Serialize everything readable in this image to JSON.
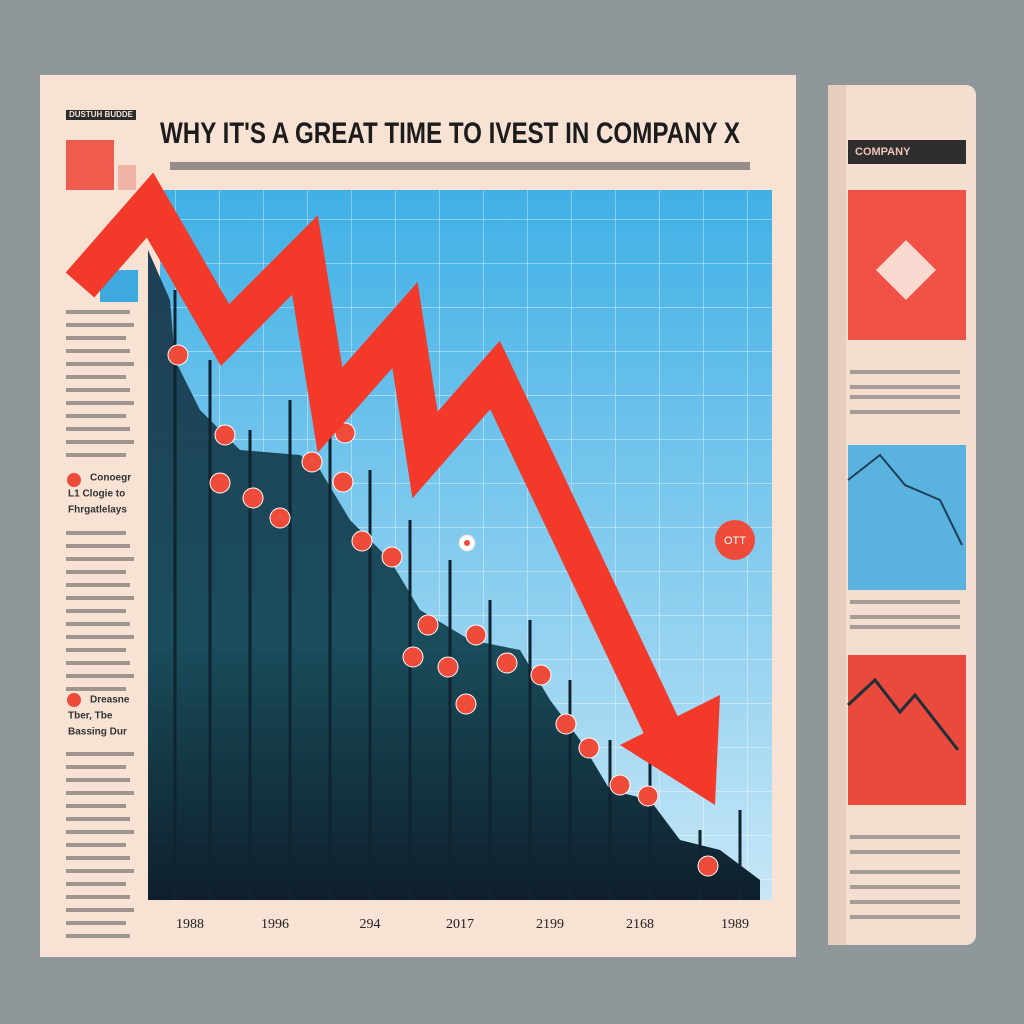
{
  "masthead": "DUSTUH BUDDE",
  "headline": "WHY IT'S A GREAT TIME TO IVEST IN COMPANY X",
  "sidebar_notes": [
    {
      "lines": [
        "Conoegr",
        "L1 Clogie to",
        "Fhrgatlelays"
      ]
    },
    {
      "lines": [
        "Dreasne",
        "Tber, Tbe",
        "Bassing Dur"
      ]
    }
  ],
  "chart_badge": "OTT",
  "x_labels": [
    "1988",
    "1996",
    "294",
    "2017",
    "2199",
    "2168",
    "1989"
  ],
  "roll": {
    "section": "COMPANY"
  }
}
